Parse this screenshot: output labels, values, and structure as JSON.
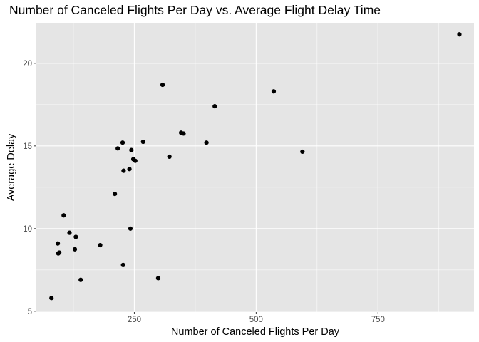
{
  "chart_data": {
    "type": "scatter",
    "title": "Number of Canceled Flights Per Day vs. Average Flight Delay Time",
    "xlabel": "Number of Canceled Flights Per Day",
    "ylabel": "Average Delay",
    "xlim": [
      49,
      947
    ],
    "ylim": [
      4.95,
      22.45
    ],
    "x_ticks": [
      250,
      500,
      750
    ],
    "x_tick_labels": [
      "250",
      "500",
      "750"
    ],
    "y_ticks": [
      5,
      10,
      15,
      20
    ],
    "y_tick_labels": [
      "5",
      "10",
      "15",
      "20"
    ],
    "grid": true,
    "background": "#e5e5e5",
    "gridline_color": "#ffffff",
    "point_color": "#000000",
    "points": [
      {
        "x": 80,
        "y": 5.8
      },
      {
        "x": 93,
        "y": 9.1
      },
      {
        "x": 94,
        "y": 8.5
      },
      {
        "x": 96,
        "y": 8.55
      },
      {
        "x": 105,
        "y": 10.8
      },
      {
        "x": 117,
        "y": 9.75
      },
      {
        "x": 128,
        "y": 8.75
      },
      {
        "x": 130,
        "y": 9.5
      },
      {
        "x": 140,
        "y": 6.9
      },
      {
        "x": 180,
        "y": 9.0
      },
      {
        "x": 210,
        "y": 12.1
      },
      {
        "x": 216,
        "y": 14.85
      },
      {
        "x": 226,
        "y": 15.2
      },
      {
        "x": 227,
        "y": 7.8
      },
      {
        "x": 228,
        "y": 13.5
      },
      {
        "x": 240,
        "y": 13.6
      },
      {
        "x": 242,
        "y": 10.0
      },
      {
        "x": 244,
        "y": 14.75
      },
      {
        "x": 248,
        "y": 14.2
      },
      {
        "x": 252,
        "y": 14.1
      },
      {
        "x": 268,
        "y": 15.25
      },
      {
        "x": 299,
        "y": 7.0
      },
      {
        "x": 308,
        "y": 18.7
      },
      {
        "x": 322,
        "y": 14.35
      },
      {
        "x": 346,
        "y": 15.8
      },
      {
        "x": 351,
        "y": 15.75
      },
      {
        "x": 398,
        "y": 15.2
      },
      {
        "x": 415,
        "y": 17.4
      },
      {
        "x": 536,
        "y": 18.3
      },
      {
        "x": 595,
        "y": 14.65
      },
      {
        "x": 917,
        "y": 21.75
      }
    ]
  }
}
